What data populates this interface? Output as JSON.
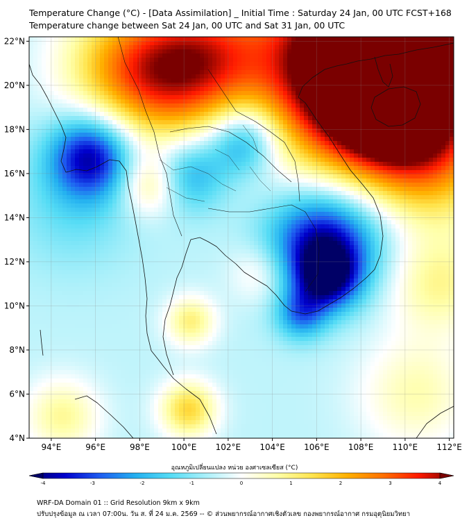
{
  "title_line1": "Temperature Change (°C) - [Data Assimilation] _ Initial Time : Saturday 24 Jan, 00 UTC FCST+168",
  "title_line2": "Temperature change between Sat 24 Jan, 00 UTC and Sat 31 Jan, 00 UTC",
  "map": {
    "lon_range": [
      93,
      112.2
    ],
    "lat_range": [
      4,
      22.2
    ],
    "lon_ticks": [
      94,
      96,
      98,
      100,
      102,
      104,
      106,
      108,
      110,
      112
    ],
    "lon_tick_labels": [
      "94°E",
      "96°E",
      "98°E",
      "100°E",
      "102°E",
      "104°E",
      "106°E",
      "108°E",
      "110°E",
      "112°E"
    ],
    "lat_ticks": [
      4,
      6,
      8,
      10,
      12,
      14,
      16,
      18,
      20,
      22
    ],
    "lat_tick_labels": [
      "4°N",
      "6°N",
      "8°N",
      "10°N",
      "12°N",
      "14°N",
      "16°N",
      "18°N",
      "20°N",
      "22°N"
    ],
    "gridlines": true,
    "field_background_value": -0.5,
    "field_anomalies": [
      {
        "lon": 95.8,
        "lat": 16.8,
        "value": -3.5,
        "radius": 1.3
      },
      {
        "lon": 95.0,
        "lat": 14.5,
        "value": -1.2,
        "radius": 2.0
      },
      {
        "lon": 99.2,
        "lat": 20.3,
        "value": 2.0,
        "radius": 2.2
      },
      {
        "lon": 97.0,
        "lat": 21.0,
        "value": 1.0,
        "radius": 2.0
      },
      {
        "lon": 101.0,
        "lat": 21.5,
        "value": 1.5,
        "radius": 2.0
      },
      {
        "lon": 107.0,
        "lat": 21.5,
        "value": 3.5,
        "radius": 3.0
      },
      {
        "lon": 110.5,
        "lat": 21.0,
        "value": 3.6,
        "radius": 3.0
      },
      {
        "lon": 108.5,
        "lat": 18.5,
        "value": 1.8,
        "radius": 2.5
      },
      {
        "lon": 111.0,
        "lat": 16.5,
        "value": 1.2,
        "radius": 2.2
      },
      {
        "lon": 109.3,
        "lat": 18.6,
        "value": 2.4,
        "radius": 0.8
      },
      {
        "lon": 102.7,
        "lat": 17.5,
        "value": -2.6,
        "radius": 1.1
      },
      {
        "lon": 100.2,
        "lat": 16.0,
        "value": -2.2,
        "radius": 1.2
      },
      {
        "lon": 106.2,
        "lat": 12.8,
        "value": -3.5,
        "radius": 1.7
      },
      {
        "lon": 106.5,
        "lat": 11.3,
        "value": -3.0,
        "radius": 1.0
      },
      {
        "lon": 105.3,
        "lat": 9.6,
        "value": -2.2,
        "radius": 0.8
      },
      {
        "lon": 108.3,
        "lat": 14.5,
        "value": -1.2,
        "radius": 2.0
      },
      {
        "lon": 98.5,
        "lat": 15.5,
        "value": 1.0,
        "radius": 1.0
      },
      {
        "lon": 100.3,
        "lat": 9.3,
        "value": 1.0,
        "radius": 0.8
      },
      {
        "lon": 100.2,
        "lat": 5.3,
        "value": 1.5,
        "radius": 0.9
      },
      {
        "lon": 94.5,
        "lat": 5.0,
        "value": 0.8,
        "radius": 1.2
      },
      {
        "lon": 111.5,
        "lat": 11.0,
        "value": 0.8,
        "radius": 1.6
      },
      {
        "lon": 110.5,
        "lat": 6.0,
        "value": 0.6,
        "radius": 1.8
      },
      {
        "lon": 103.5,
        "lat": 11.5,
        "value": 0.4,
        "radius": 1.0
      }
    ]
  },
  "colorbar": {
    "title": "อุณหภูมิเปลี่ยนแปลง หน่วย องศาเซลเซียส (°C)",
    "min": -4,
    "max": 4,
    "tick_values": [
      -4,
      -3,
      -2,
      -1,
      0,
      1,
      2,
      3,
      4
    ],
    "tick_labels": [
      "-4",
      "-3",
      "-2",
      "-1",
      "0",
      "1",
      "2",
      "3",
      "4"
    ],
    "color_stops": [
      "#000066",
      "#0000cc",
      "#1e5cf0",
      "#23b0f0",
      "#55dcf5",
      "#aaf0fa",
      "#ffffff",
      "#ffffaa",
      "#ffe44d",
      "#ffb000",
      "#ff7000",
      "#ff1a00",
      "#7a0000"
    ]
  },
  "footer_line1": "WRF-DA Domain 01 :: Grid Resolution 9km x 9km",
  "footer_line2": "ปรับปรุงข้อมูล ณ เวลา 07:00น. วัน ส. ที่ 24 ม.ค. 2569 -- © ส่วนพยากรณ์อากาศเชิงตัวเลข กองพยากรณ์อากาศ กรมอุตุนิยมวิทยา"
}
